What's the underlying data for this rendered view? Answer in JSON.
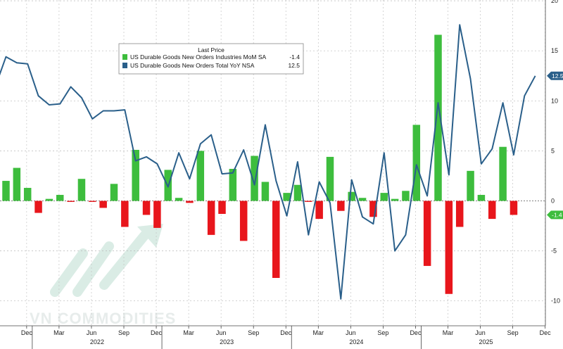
{
  "chart_data": {
    "type": "bar+line",
    "legend": {
      "title": "Last Price",
      "entries": [
        {
          "label": "US Durable Goods New Orders Industries MoM SA",
          "last_value": "-1.4",
          "color": "#3dbd3d"
        },
        {
          "label": "US Durable Goods New Orders Total YoY NSA",
          "last_value": "12.5",
          "color": "#2a5f8a"
        }
      ]
    },
    "ylim": [
      -14,
      20
    ],
    "y_ticks": [
      20,
      15,
      10,
      5,
      0,
      -5,
      -10
    ],
    "x_month_ticks": [
      "Dec",
      "Mar",
      "Jun",
      "Sep",
      "Dec",
      "Mar",
      "Jun",
      "Sep",
      "Dec",
      "Mar",
      "Jun",
      "Sep",
      "Dec",
      "Mar",
      "Jun",
      "Sep",
      "Dec"
    ],
    "x_year_labels": [
      "2022",
      "2023",
      "2024",
      "2025"
    ],
    "colors": {
      "positive_bar": "#3dbd3d",
      "negative_bar": "#e8161c",
      "line": "#2a5f8a"
    },
    "series": [
      {
        "name": "US Durable Goods New Orders Industries MoM SA",
        "type": "bar",
        "start": "2021-11",
        "values": [
          2.0,
          3.3,
          1.3,
          -1.2,
          0.2,
          0.6,
          -0.1,
          2.2,
          -0.1,
          -0.7,
          1.7,
          -2.6,
          5.1,
          -1.4,
          -2.7,
          3.1,
          0.3,
          -0.2,
          5.0,
          -3.4,
          -1.3,
          3.2,
          -4.0,
          4.5,
          1.9,
          -7.7,
          0.8,
          1.6,
          -0.1,
          -1.8,
          4.4,
          -1.0,
          0.9,
          0.3,
          -1.6,
          0.8,
          0.2,
          1.0,
          7.6,
          -6.5,
          16.6,
          -9.3,
          -2.6,
          3.0,
          0.6,
          -1.8,
          5.4,
          -1.4
        ]
      },
      {
        "name": "US Durable Goods New Orders Total YoY NSA",
        "type": "line",
        "start": "2021-10",
        "values": [
          11.4,
          14.4,
          13.8,
          13.7,
          10.5,
          9.6,
          9.7,
          11.4,
          10.3,
          8.2,
          9.0,
          9.0,
          9.1,
          4.0,
          4.4,
          3.7,
          1.4,
          4.8,
          2.2,
          5.7,
          6.6,
          2.7,
          2.8,
          5.1,
          1.6,
          7.6,
          2.0,
          -1.5,
          3.9,
          -3.4,
          1.9,
          -0.2,
          -9.8,
          2.1,
          -1.6,
          -2.3,
          4.8,
          -5.0,
          -3.4,
          3.6,
          0.5,
          9.8,
          2.6,
          17.6,
          12.2,
          3.7,
          5.2,
          9.8,
          4.6,
          10.5,
          12.5
        ]
      }
    ],
    "last_value_labels": [
      {
        "text": "12.5",
        "value": 12.5,
        "color": "#2a5f8a"
      },
      {
        "text": "-1.4",
        "value": -1.4,
        "color": "#3dbd3d"
      }
    ],
    "watermark": "VN COMMODITIES"
  }
}
